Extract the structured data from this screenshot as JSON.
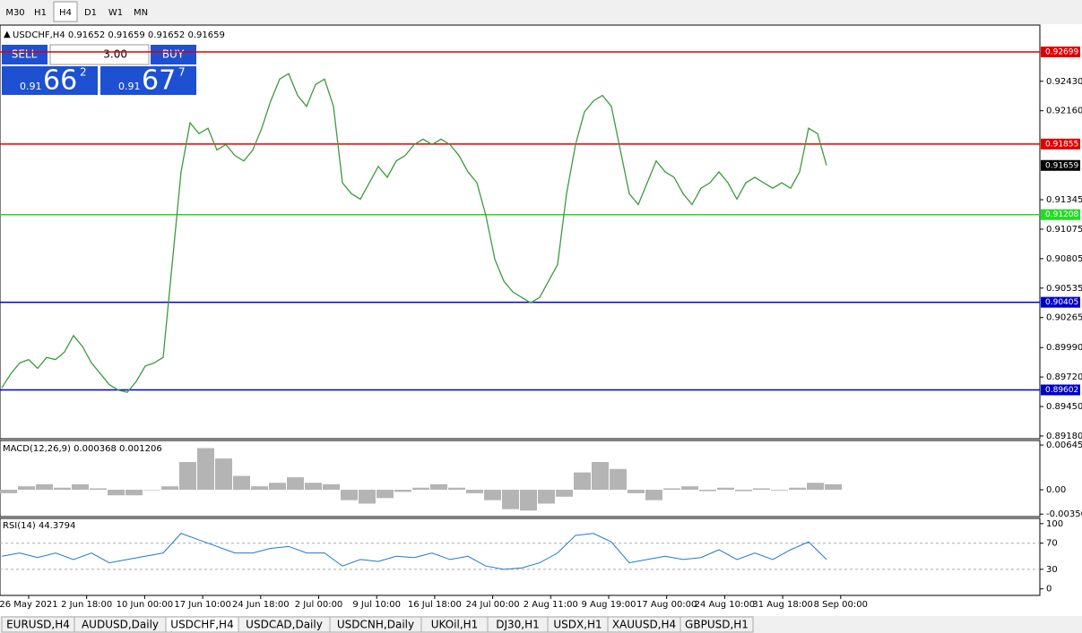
{
  "toolbar": {
    "timeframes": [
      "M30",
      "H1",
      "H4",
      "D1",
      "W1",
      "MN"
    ],
    "active": 2
  },
  "symbol_info": "USDCHF,H4  0.91652 0.91659 0.91652 0.91659",
  "trade_panel": {
    "sell": "SELL",
    "lot": "3.00",
    "buy": "BUY",
    "bid": {
      "big": "0.91",
      "main": "66",
      "small": "2"
    },
    "ask": {
      "big": "0.91",
      "main": "67",
      "small": "7"
    }
  },
  "price_chart": {
    "type": "line",
    "color": "#3c9b3c",
    "ylim": [
      0.89155,
      0.92945
    ],
    "yticks": [
      {
        "value": 0.9243,
        "label": "0.92430"
      },
      {
        "value": 0.9216,
        "label": "0.92160"
      },
      0.91345,
      0.91075,
      0.90805,
      0.90535,
      0.90265,
      {
        "value": 0.8999,
        "label": "0.89990"
      },
      {
        "value": 0.8972,
        "label": "0.89720"
      },
      {
        "value": 0.8945,
        "label": "0.89450"
      },
      {
        "value": 0.8918,
        "label": "0.89180"
      }
    ],
    "levels": [
      {
        "value": 0.92699,
        "color": "#e00000"
      },
      {
        "value": 0.91855,
        "color": "#e00000"
      },
      {
        "value": 0.91208,
        "color": "#22dd22"
      },
      {
        "value": 0.90405,
        "color": "#0000cc"
      },
      {
        "value": 0.89602,
        "color": "#0000cc"
      }
    ],
    "current": 0.91659,
    "x_labels": [
      "26 May 2021",
      "2 Jun 18:00",
      "10 Jun 00:00",
      "17 Jun 10:00",
      "24 Jun 18:00",
      "2 Jul 00:00",
      "9 Jul 10:00",
      "16 Jul 18:00",
      "24 Jul 00:00",
      "2 Aug 11:00",
      "9 Aug 19:00",
      "17 Aug 00:00",
      "24 Aug 10:00",
      "31 Aug 18:00",
      "8 Sep 00:00"
    ],
    "closes": [
      0.8962,
      0.8975,
      0.8985,
      0.8988,
      0.898,
      0.899,
      0.8988,
      0.8995,
      0.901,
      0.9,
      0.8985,
      0.8975,
      0.8965,
      0.896,
      0.8958,
      0.8968,
      0.8982,
      0.8985,
      0.899,
      0.9075,
      0.916,
      0.9205,
      0.9195,
      0.92,
      0.918,
      0.9185,
      0.9175,
      0.917,
      0.918,
      0.92,
      0.9225,
      0.9245,
      0.925,
      0.923,
      0.922,
      0.924,
      0.9245,
      0.922,
      0.915,
      0.914,
      0.9135,
      0.915,
      0.9165,
      0.9155,
      0.917,
      0.9175,
      0.9185,
      0.919,
      0.9185,
      0.919,
      0.9185,
      0.9175,
      0.916,
      0.915,
      0.912,
      0.908,
      0.906,
      0.905,
      0.9045,
      0.904,
      0.9045,
      0.906,
      0.9075,
      0.914,
      0.9185,
      0.9215,
      0.9225,
      0.923,
      0.922,
      0.918,
      0.914,
      0.913,
      0.915,
      0.917,
      0.916,
      0.9155,
      0.914,
      0.913,
      0.9145,
      0.915,
      0.916,
      0.915,
      0.9135,
      0.915,
      0.9155,
      0.915,
      0.9145,
      0.915,
      0.9145,
      0.916,
      0.92,
      0.9195,
      0.9166
    ]
  },
  "macd": {
    "label": "MACD(12,26,9) 0.000368 0.001206",
    "color": "#b4b4b4",
    "ylim": [
      -0.00387,
      0.0071
    ],
    "yticks": [
      0.006451,
      {
        "value": 0,
        "label": "0.00"
      },
      -0.003507
    ],
    "values": [
      -0.0005,
      0.0005,
      0.0008,
      0.0003,
      0.0008,
      0.0002,
      -0.0008,
      -0.0008,
      0,
      0.0005,
      0.004,
      0.006,
      0.0045,
      0.002,
      0.0005,
      0.001,
      0.0018,
      0.001,
      0.0008,
      -0.0015,
      -0.002,
      -0.0012,
      -0.0003,
      0.0003,
      0.0008,
      0.0003,
      -0.0005,
      -0.0015,
      -0.0028,
      -0.003,
      -0.002,
      -0.001,
      0.0025,
      0.004,
      0.003,
      -0.0005,
      -0.0015,
      0.0002,
      0.0005,
      -0.0002,
      0.0003,
      -0.0002,
      0.0002,
      -0.0001,
      0.0003,
      0.001,
      0.0008
    ]
  },
  "rsi": {
    "label": "RSI(14) 44.3794",
    "color": "#1e78d2",
    "ylim": [
      -10,
      108
    ],
    "yticks": [
      100,
      70,
      30,
      0
    ],
    "values": [
      50,
      55,
      48,
      55,
      45,
      55,
      40,
      45,
      50,
      55,
      85,
      75,
      65,
      55,
      55,
      62,
      65,
      55,
      55,
      35,
      45,
      42,
      50,
      48,
      55,
      45,
      50,
      35,
      30,
      32,
      40,
      55,
      82,
      85,
      72,
      40,
      45,
      50,
      45,
      48,
      60,
      45,
      55,
      45,
      60,
      72,
      45
    ]
  },
  "tabs": [
    "EURUSD,H4",
    "AUDUSD,Daily",
    "USDCHF,H4",
    "USDCAD,Daily",
    "USDCNH,Daily",
    "UKOil,H1",
    "DJ30,H1",
    "USDX,H1",
    "XAUUSD,H4",
    "GBPUSD,H1"
  ],
  "active_tab": 2
}
